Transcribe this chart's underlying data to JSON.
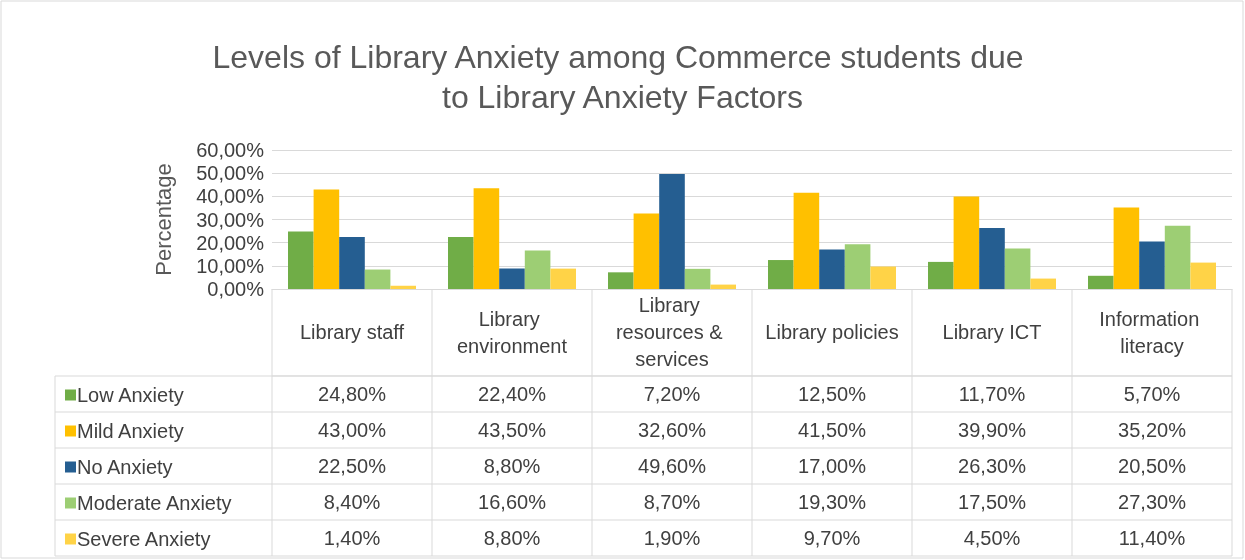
{
  "chart_data": {
    "type": "bar",
    "title": "Levels of Library Anxiety among Commerce students due to Library Anxiety Factors",
    "ylabel": "Percentage",
    "categories": [
      "Library staff",
      "Library environment",
      "Library resources & services",
      "Library policies",
      "Library ICT",
      "Information literacy"
    ],
    "series": [
      {
        "name": "Low Anxiety",
        "color": "#70ad47",
        "values": [
          24.8,
          22.4,
          7.2,
          12.5,
          11.7,
          5.7
        ],
        "value_labels": [
          "24,80%",
          "22,40%",
          "7,20%",
          "12,50%",
          "11,70%",
          "5,70%"
        ]
      },
      {
        "name": "Mild Anxiety",
        "color": "#ffc000",
        "values": [
          43.0,
          43.5,
          32.6,
          41.5,
          39.9,
          35.2
        ],
        "value_labels": [
          "43,00%",
          "43,50%",
          "32,60%",
          "41,50%",
          "39,90%",
          "35,20%"
        ]
      },
      {
        "name": "No Anxiety",
        "color": "#255e91",
        "values": [
          22.5,
          8.8,
          49.6,
          17.0,
          26.3,
          20.5
        ],
        "value_labels": [
          "22,50%",
          "8,80%",
          "49,60%",
          "17,00%",
          "26,30%",
          "20,50%"
        ]
      },
      {
        "name": "Moderate Anxiety",
        "color": "#9dce74",
        "values": [
          8.4,
          16.6,
          8.7,
          19.3,
          17.5,
          27.3
        ],
        "value_labels": [
          "8,40%",
          "16,60%",
          "8,70%",
          "19,30%",
          "17,50%",
          "27,30%"
        ]
      },
      {
        "name": "Severe Anxiety",
        "color": "#ffd347",
        "values": [
          1.4,
          8.8,
          1.9,
          9.7,
          4.5,
          11.4
        ],
        "value_labels": [
          "1,40%",
          "8,80%",
          "1,90%",
          "9,70%",
          "4,50%",
          "11,40%"
        ]
      }
    ],
    "ylim": [
      0,
      60
    ],
    "yticks": [
      {
        "value": 0,
        "label": "0,00%"
      },
      {
        "value": 10,
        "label": "10,00%"
      },
      {
        "value": 20,
        "label": "20,00%"
      },
      {
        "value": 30,
        "label": "30,00%"
      },
      {
        "value": 40,
        "label": "40,00%"
      },
      {
        "value": 50,
        "label": "50,00%"
      },
      {
        "value": 60,
        "label": "60,00%"
      }
    ],
    "grid": "y",
    "legend": "bottom left"
  }
}
